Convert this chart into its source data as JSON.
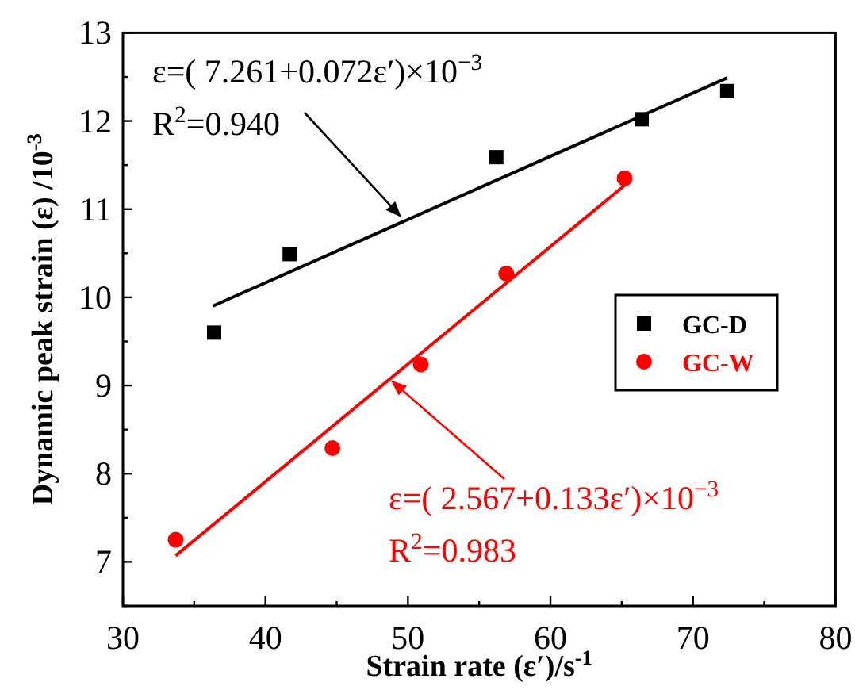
{
  "chart_data": {
    "type": "scatter",
    "xlabel": "Strain rate (ε′)/s$^{-1}$",
    "ylabel": "Dynamic peak strain (ε) /10$^{-3}$",
    "xlim": [
      30,
      80
    ],
    "xticks": [
      30,
      {
        "value": 35,
        "label": null
      },
      40,
      {
        "value": 45,
        "label": null
      },
      50,
      {
        "value": 55,
        "label": null
      },
      60,
      {
        "value": 65,
        "label": null
      },
      70,
      {
        "value": 75,
        "label": null
      },
      80
    ],
    "ylim": [
      6.5,
      13
    ],
    "yticks": [
      {
        "value": 6.5,
        "label": null
      },
      7,
      {
        "value": 7.5,
        "label": null
      },
      8,
      {
        "value": 8.5,
        "label": null
      },
      9,
      {
        "value": 9.5,
        "label": null
      },
      10,
      {
        "value": 10.5,
        "label": null
      },
      11,
      {
        "value": 11.5,
        "label": null
      },
      12,
      {
        "value": 12.5,
        "label": null
      },
      13
    ],
    "legend": "right",
    "grid": false,
    "series": [
      {
        "name": "GC-D",
        "marker": "square",
        "color": "#000000",
        "x": [
          36.4,
          41.7,
          56.2,
          66.4,
          72.4
        ],
        "values": [
          9.6,
          10.49,
          11.59,
          12.02,
          12.34
        ]
      },
      {
        "name": "GC-W",
        "marker": "circle",
        "color": "#ff0000",
        "x": [
          33.7,
          44.7,
          50.9,
          56.9,
          65.2
        ],
        "values": [
          7.25,
          8.29,
          9.24,
          10.27,
          11.35
        ]
      },
      {
        "type": "line",
        "marker": "none",
        "color": "#000000",
        "x": [
          36.3,
          72.4
        ],
        "values": [
          9.9,
          12.49
        ]
      },
      {
        "type": "line",
        "marker": "none",
        "color": "#ff0000",
        "x": [
          33.7,
          65.2
        ],
        "values": [
          7.07,
          11.27
        ]
      }
    ],
    "annotations": [
      "ε=( 7.261+0.072ε′)×10$^{−3}$",
      "R$^{2}$=0.940",
      {
        "text": "ε=( 2.567+0.133ε′)×10$^{−3}$",
        "x": 48.8,
        "y": 9.06
      },
      "R$^{2}$=0.983"
    ]
  }
}
